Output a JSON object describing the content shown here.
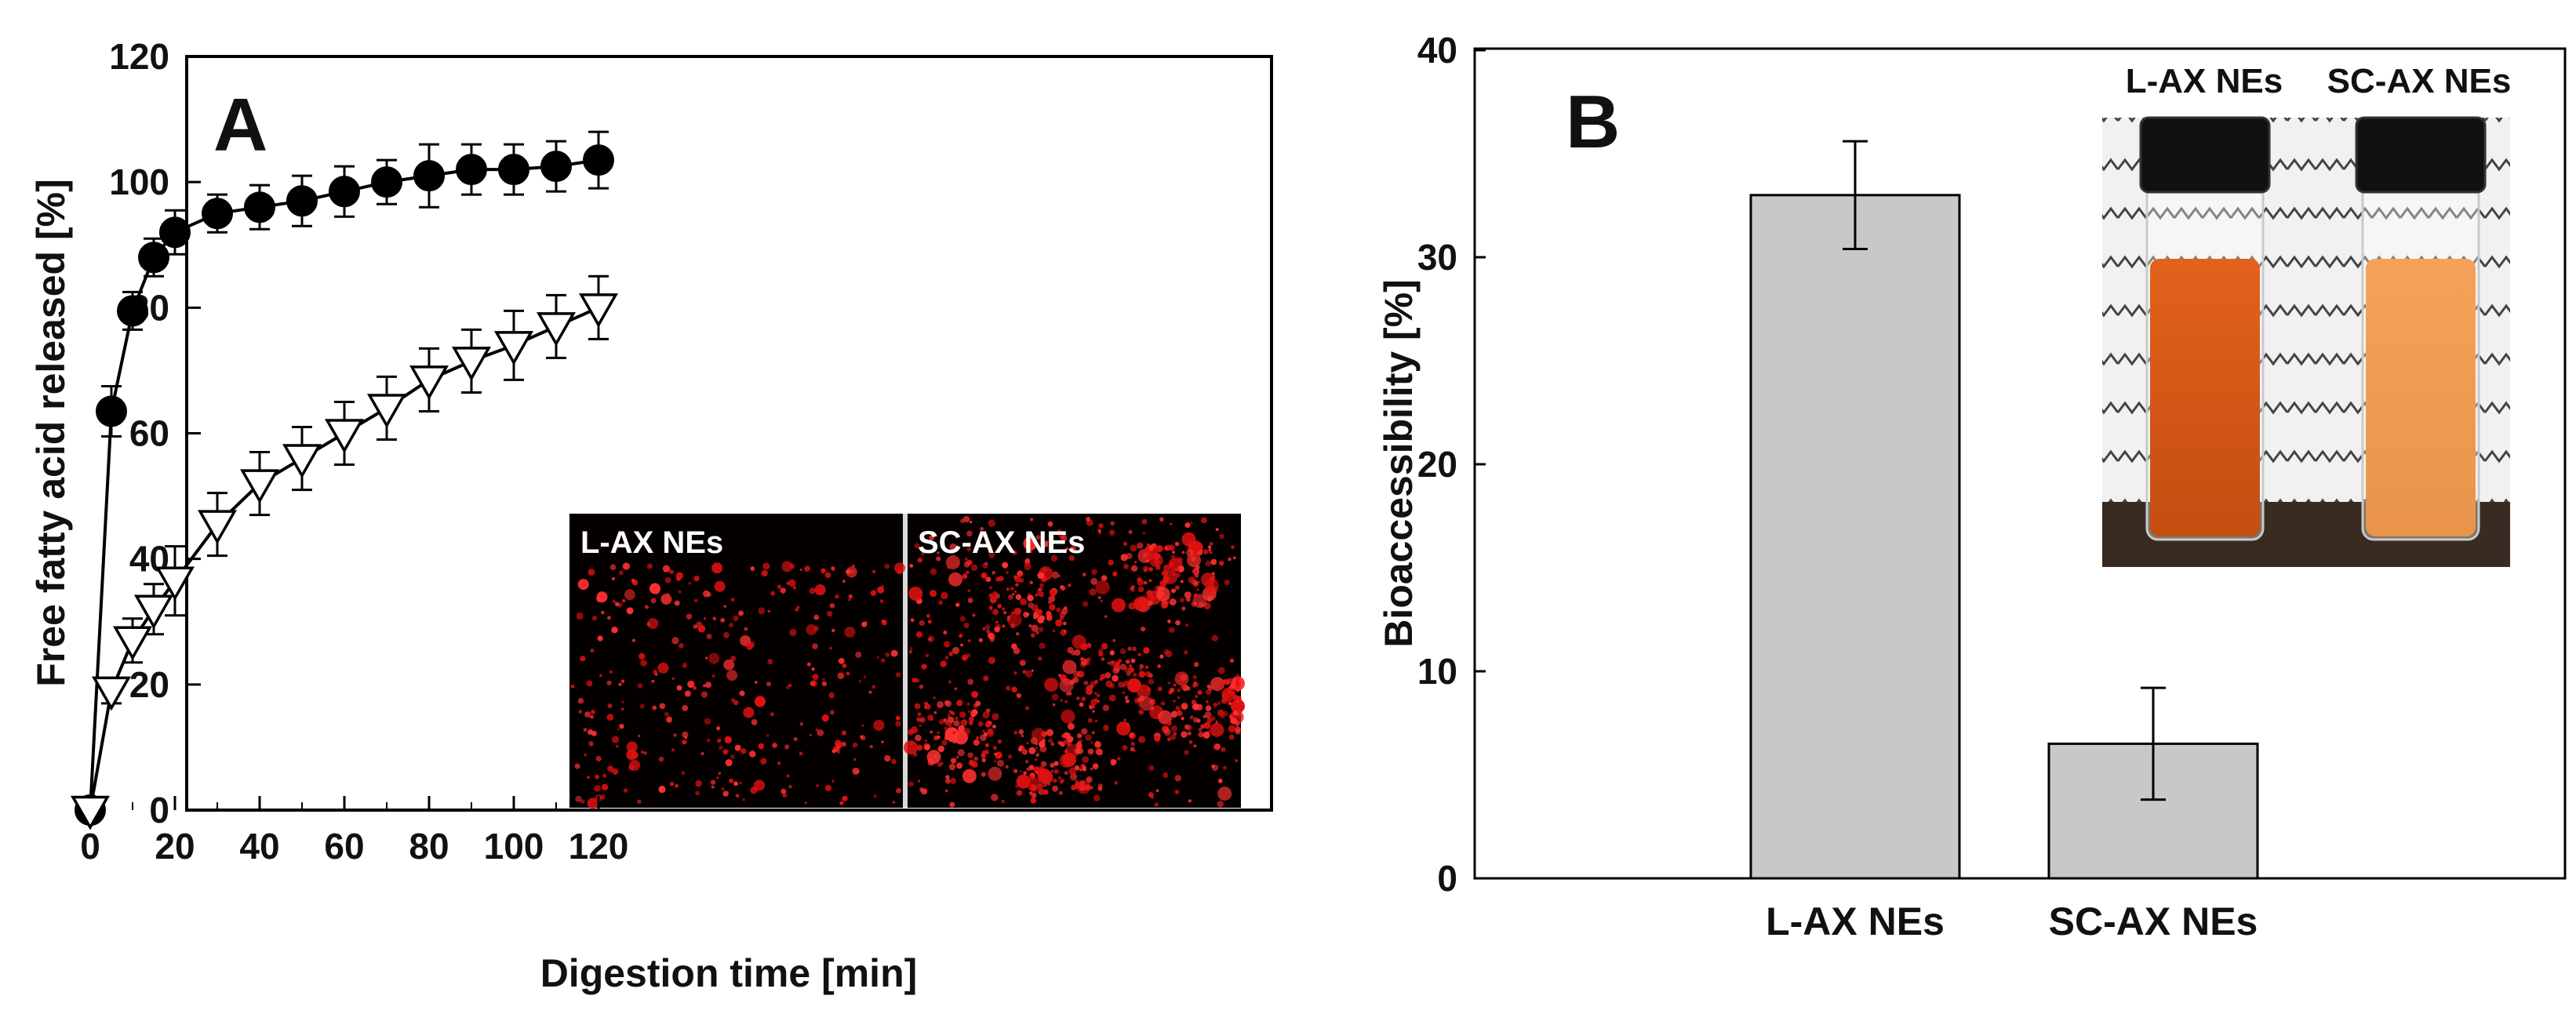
{
  "chart_data": [
    {
      "type": "line",
      "panel_label": "A",
      "xlabel": "Digestion time [min]",
      "ylabel": "Free fatty acid released [%]",
      "xlim": [
        0,
        125
      ],
      "ylim": [
        0,
        120
      ],
      "xticks": [
        "0",
        "20",
        "40",
        "60",
        "80",
        "100",
        "120"
      ],
      "yticks": [
        "0",
        "20",
        "40",
        "60",
        "80",
        "100",
        "120"
      ],
      "grid": false,
      "series": [
        {
          "marker": "filled-circle",
          "color": "#000000",
          "x": [
            0,
            5,
            10,
            15,
            20,
            30,
            40,
            50,
            60,
            70,
            80,
            90,
            100,
            110,
            120
          ],
          "y": [
            0,
            63.5,
            79.5,
            88,
            92,
            95,
            96,
            97,
            98.5,
            100,
            101,
            102,
            102,
            102.5,
            103.5
          ],
          "err": [
            0,
            4,
            3,
            3,
            3.5,
            3,
            3.5,
            4,
            4,
            3.5,
            5,
            4,
            4,
            4,
            4.5
          ]
        },
        {
          "marker": "open-triangle-down",
          "color": "#000000",
          "x": [
            0,
            5,
            10,
            15,
            20,
            30,
            40,
            50,
            60,
            70,
            80,
            90,
            100,
            110,
            120
          ],
          "y": [
            0,
            19,
            27,
            32,
            36.5,
            45.5,
            52,
            56,
            60,
            64,
            68.5,
            71.5,
            74,
            77,
            80
          ],
          "err": [
            0,
            2,
            3.5,
            4,
            5.5,
            5,
            5,
            5,
            5,
            5,
            5,
            5,
            5.5,
            5,
            5
          ]
        }
      ],
      "inset": {
        "labels": [
          "L-AX NEs",
          "SC-AX NEs"
        ]
      }
    },
    {
      "type": "bar",
      "panel_label": "B",
      "xlabel": "",
      "ylabel": "Bioaccessibility [%]",
      "ylim": [
        0,
        40
      ],
      "yticks": [
        "0",
        "10",
        "20",
        "30",
        "40"
      ],
      "categories": [
        "L-AX NEs",
        "SC-AX NEs"
      ],
      "values": [
        33,
        6.5
      ],
      "err": [
        2.6,
        2.7
      ],
      "bar_color": "#c8c8c8",
      "grid": false,
      "inset": {
        "labels": [
          "L-AX NEs",
          "SC-AX NEs"
        ]
      }
    }
  ]
}
